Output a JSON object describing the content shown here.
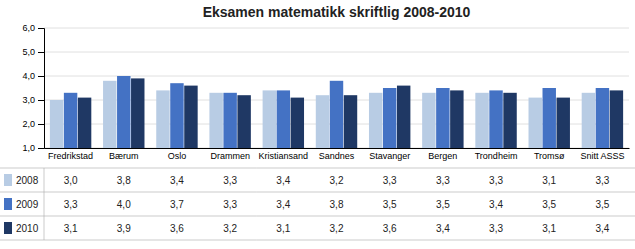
{
  "chart_data": {
    "type": "bar",
    "title": "Eksamen matematikk skriftlig 2008-2010",
    "categories": [
      "Fredrikstad",
      "Bærum",
      "Oslo",
      "Drammen",
      "Kristiansand",
      "Sandnes",
      "Stavanger",
      "Bergen",
      "Trondheim",
      "Tromsø",
      "Snitt ASSS"
    ],
    "series": [
      {
        "name": "2008",
        "color": "#b8cce4",
        "values": [
          3.0,
          3.8,
          3.4,
          3.3,
          3.4,
          3.2,
          3.3,
          3.3,
          3.3,
          3.1,
          3.3
        ],
        "value_labels": [
          "3,0",
          "3,8",
          "3,4",
          "3,3",
          "3,4",
          "3,2",
          "3,3",
          "3,3",
          "3,3",
          "3,1",
          "3,3"
        ]
      },
      {
        "name": "2009",
        "color": "#4472c4",
        "values": [
          3.3,
          4.0,
          3.7,
          3.3,
          3.4,
          3.8,
          3.5,
          3.5,
          3.4,
          3.5,
          3.5
        ],
        "value_labels": [
          "3,3",
          "4,0",
          "3,7",
          "3,3",
          "3,4",
          "3,8",
          "3,5",
          "3,5",
          "3,4",
          "3,5",
          "3,5"
        ]
      },
      {
        "name": "2010",
        "color": "#1f3864",
        "values": [
          3.1,
          3.9,
          3.6,
          3.2,
          3.1,
          3.2,
          3.6,
          3.4,
          3.3,
          3.1,
          3.4
        ],
        "value_labels": [
          "3,1",
          "3,9",
          "3,6",
          "3,2",
          "3,1",
          "3,2",
          "3,6",
          "3,4",
          "3,3",
          "3,1",
          "3,4"
        ]
      }
    ],
    "ylim": [
      1.0,
      6.0
    ],
    "yticks": [
      {
        "value": 1.0,
        "label": "1,0"
      },
      {
        "value": 2.0,
        "label": "2,0"
      },
      {
        "value": 3.0,
        "label": "3,0"
      },
      {
        "value": 4.0,
        "label": "4,0"
      },
      {
        "value": 5.0,
        "label": "5,0"
      },
      {
        "value": 6.0,
        "label": "6,0"
      }
    ],
    "grid": true,
    "data_labels": true
  }
}
